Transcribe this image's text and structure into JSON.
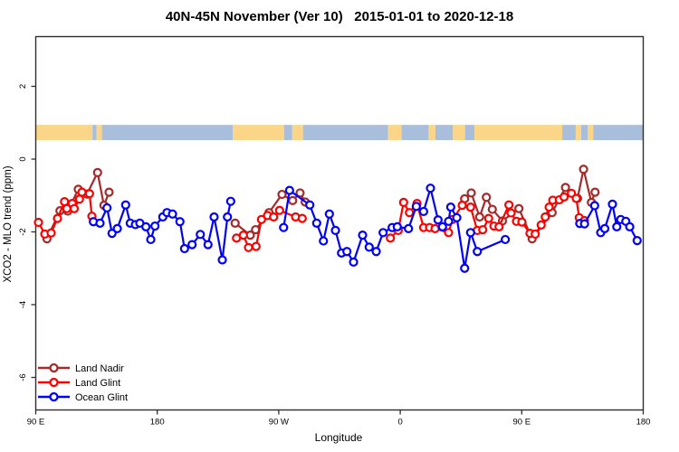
{
  "title": "40N-45N November (Ver 10)   2015-01-01 to 2020-12-18",
  "frame_color": "#2e2e2e",
  "chart_data": {
    "type": "line",
    "title": "40N-45N November (Ver 10)   2015-01-01 to 2020-12-18",
    "xlabel": "Longitude",
    "ylabel": "XCO2 - MLO trend (ppm)",
    "x_axis": {
      "note": "longitude axis spans 450 deg starting at 90E, wrapping east to 180",
      "range": [
        0,
        450
      ],
      "ticks": [
        {
          "v": 0,
          "label": "90 E"
        },
        {
          "v": 90,
          "label": "180"
        },
        {
          "v": 180,
          "label": "90 W"
        },
        {
          "v": 270,
          "label": "0"
        },
        {
          "v": 360,
          "label": "90 E"
        },
        {
          "v": 450,
          "label": "180"
        }
      ]
    },
    "y_axis": {
      "range": [
        -6.9,
        3.35
      ],
      "ticks": [
        {
          "v": 2,
          "label": "2"
        },
        {
          "v": 0,
          "label": "0"
        },
        {
          "v": -2,
          "label": "-2"
        },
        {
          "v": -4,
          "label": "-4"
        },
        {
          "v": -6,
          "label": "-6"
        }
      ]
    },
    "legend_position": "bottom-left",
    "series": [
      {
        "name": "Land Nadir",
        "color": "#a52a2a",
        "segments": [
          [
            [
              8.3,
              -2.19
            ],
            [
              17.9,
              -1.42
            ],
            [
              23.7,
              -1.43
            ],
            [
              31.5,
              -0.83
            ],
            [
              38.0,
              -0.96
            ],
            [
              45.8,
              -0.37
            ],
            [
              50.5,
              -1.27
            ],
            [
              54.3,
              -0.91
            ]
          ],
          [
            [
              147.7,
              -1.76
            ],
            [
              158.9,
              -2.09
            ],
            [
              162.8,
              -1.94
            ],
            [
              172.8,
              -1.47
            ],
            [
              182.4,
              -0.97
            ],
            [
              190.3,
              -1.14
            ],
            [
              195.8,
              -0.93
            ],
            [
              199.6,
              -1.18
            ]
          ],
          [
            [
              317.7,
              -1.09
            ],
            [
              322.6,
              -0.93
            ],
            [
              328.8,
              -1.59
            ],
            [
              333.8,
              -1.05
            ],
            [
              338.2,
              -1.38
            ],
            [
              345.7,
              -1.7
            ],
            [
              357.9,
              -1.36
            ],
            [
              367.7,
              -2.19
            ],
            [
              382.5,
              -1.47
            ],
            [
              392.4,
              -0.78
            ],
            [
              401.3,
              -1.08
            ],
            [
              405.8,
              -0.28
            ],
            [
              411.6,
              -1.19
            ],
            [
              414.3,
              -0.91
            ]
          ]
        ]
      },
      {
        "name": "Land Glint",
        "color": "#ff0000",
        "segments": [
          [
            [
              2.0,
              -1.74
            ],
            [
              6.7,
              -2.06
            ],
            [
              11.4,
              -2.03
            ],
            [
              16.1,
              -1.63
            ],
            [
              21.3,
              -1.17
            ],
            [
              23.0,
              -1.36
            ],
            [
              27.0,
              -1.22
            ],
            [
              28.5,
              -1.36
            ],
            [
              32.4,
              -1.1
            ],
            [
              34.2,
              -0.91
            ],
            [
              39.8,
              -0.95
            ],
            [
              41.6,
              -1.57
            ]
          ],
          [
            [
              148.7,
              -2.17
            ],
            [
              153.8,
              -2.09
            ],
            [
              157.6,
              -2.43
            ],
            [
              163.2,
              -2.4
            ],
            [
              167.2,
              -1.66
            ],
            [
              171.7,
              -1.55
            ],
            [
              176.2,
              -1.59
            ],
            [
              180.6,
              -1.41
            ],
            [
              192.5,
              -1.59
            ],
            [
              197.4,
              -1.63
            ]
          ],
          [
            [
              262.7,
              -2.17
            ],
            [
              268.5,
              -1.96
            ],
            [
              272.5,
              -1.19
            ],
            [
              276.8,
              -1.47
            ],
            [
              282.4,
              -1.22
            ],
            [
              287.3,
              -1.88
            ],
            [
              291.7,
              -1.88
            ],
            [
              295.8,
              -1.91
            ],
            [
              305.8,
              -2.02
            ],
            [
              308.7,
              -1.66
            ],
            [
              315.9,
              -1.27
            ],
            [
              322.1,
              -1.32
            ],
            [
              327.1,
              -1.96
            ],
            [
              331.1,
              -1.94
            ],
            [
              335.5,
              -1.63
            ],
            [
              339.4,
              -1.84
            ],
            [
              343.2,
              -1.86
            ],
            [
              350.5,
              -1.26
            ],
            [
              352.1,
              -1.48
            ],
            [
              356.1,
              -1.71
            ],
            [
              360.1,
              -1.73
            ],
            [
              366.1,
              -2.04
            ],
            [
              370.0,
              -2.06
            ],
            [
              374.4,
              -1.81
            ],
            [
              377.4,
              -1.59
            ],
            [
              380.3,
              -1.32
            ],
            [
              383.0,
              -1.13
            ],
            [
              387.8,
              -1.12
            ],
            [
              391.4,
              -1.04
            ],
            [
              396.8,
              -0.94
            ],
            [
              400.4,
              -1.08
            ],
            [
              402.6,
              -1.61
            ],
            [
              406.4,
              -1.69
            ]
          ]
        ]
      },
      {
        "name": "Ocean Glint",
        "color": "#0000ff",
        "segments": [
          [
            [
              42.7,
              -1.72
            ],
            [
              47.6,
              -1.76
            ],
            [
              52.8,
              -1.34
            ],
            [
              56.5,
              -2.04
            ],
            [
              60.4,
              -1.91
            ],
            [
              66.6,
              -1.26
            ],
            [
              70.0,
              -1.76
            ],
            [
              73.8,
              -1.8
            ],
            [
              77.1,
              -1.76
            ],
            [
              81.6,
              -1.86
            ],
            [
              85.2,
              -2.21
            ],
            [
              88.3,
              -1.84
            ],
            [
              94.1,
              -1.59
            ],
            [
              97.2,
              -1.47
            ],
            [
              101.3,
              -1.51
            ],
            [
              106.8,
              -1.72
            ],
            [
              110.2,
              -2.46
            ],
            [
              115.8,
              -2.35
            ],
            [
              121.9,
              -2.07
            ],
            [
              127.6,
              -2.35
            ],
            [
              132.1,
              -1.59
            ],
            [
              138.2,
              -2.77
            ],
            [
              142.0,
              -1.59
            ],
            [
              144.4,
              -1.16
            ]
          ],
          [
            [
              183.6,
              -1.88
            ],
            [
              188.0,
              -0.86
            ],
            [
              203.0,
              -1.26
            ],
            [
              208.1,
              -1.76
            ],
            [
              213.1,
              -2.25
            ],
            [
              217.5,
              -1.51
            ],
            [
              222.0,
              -1.96
            ],
            [
              226.5,
              -2.58
            ],
            [
              230.5,
              -2.54
            ],
            [
              235.4,
              -2.83
            ],
            [
              242.1,
              -2.09
            ],
            [
              247.0,
              -2.42
            ],
            [
              252.2,
              -2.54
            ],
            [
              257.3,
              -2.02
            ],
            [
              264.0,
              -1.88
            ],
            [
              267.8,
              -1.86
            ],
            [
              276.1,
              -1.91
            ],
            [
              281.9,
              -1.3
            ],
            [
              287.3,
              -1.44
            ],
            [
              292.4,
              -0.8
            ],
            [
              298.0,
              -1.67
            ],
            [
              301.3,
              -1.86
            ],
            [
              305.8,
              -1.71
            ],
            [
              307.4,
              -1.32
            ],
            [
              311.9,
              -1.61
            ],
            [
              317.7,
              -3.0
            ],
            [
              322.1,
              -2.02
            ],
            [
              327.1,
              -2.54
            ],
            [
              347.8,
              -2.21
            ]
          ],
          [
            [
              403.0,
              -1.77
            ],
            [
              406.5,
              -1.78
            ],
            [
              414.0,
              -1.28
            ],
            [
              418.5,
              -2.02
            ],
            [
              421.5,
              -1.91
            ],
            [
              427.2,
              -1.24
            ],
            [
              430.4,
              -1.86
            ],
            [
              433.3,
              -1.66
            ],
            [
              437.1,
              -1.71
            ],
            [
              440.0,
              -1.86
            ],
            [
              445.5,
              -2.24
            ]
          ]
        ]
      }
    ]
  },
  "surface_band": {
    "description": "land/ocean strip along longitude",
    "top_ppm": 0.94,
    "bottom_ppm": 0.52,
    "colors": {
      "land": "#fbd688",
      "ocean": "#a9bedb"
    },
    "segments": [
      {
        "from": 0,
        "to": 42,
        "surface": "land"
      },
      {
        "from": 42,
        "to": 45,
        "surface": "ocean"
      },
      {
        "from": 45,
        "to": 49,
        "surface": "land"
      },
      {
        "from": 49,
        "to": 146,
        "surface": "ocean"
      },
      {
        "from": 146,
        "to": 184,
        "surface": "land"
      },
      {
        "from": 184,
        "to": 190,
        "surface": "ocean"
      },
      {
        "from": 190,
        "to": 198,
        "surface": "land"
      },
      {
        "from": 198,
        "to": 261,
        "surface": "ocean"
      },
      {
        "from": 261,
        "to": 271,
        "surface": "land"
      },
      {
        "from": 271,
        "to": 291,
        "surface": "ocean"
      },
      {
        "from": 291,
        "to": 296,
        "surface": "land"
      },
      {
        "from": 296,
        "to": 309,
        "surface": "ocean"
      },
      {
        "from": 309,
        "to": 318,
        "surface": "land"
      },
      {
        "from": 318,
        "to": 325,
        "surface": "ocean"
      },
      {
        "from": 325,
        "to": 390,
        "surface": "land"
      },
      {
        "from": 390,
        "to": 400,
        "surface": "ocean"
      },
      {
        "from": 400,
        "to": 404,
        "surface": "land"
      },
      {
        "from": 404,
        "to": 409,
        "surface": "ocean"
      },
      {
        "from": 409,
        "to": 413,
        "surface": "land"
      },
      {
        "from": 413,
        "to": 450,
        "surface": "ocean"
      }
    ]
  }
}
